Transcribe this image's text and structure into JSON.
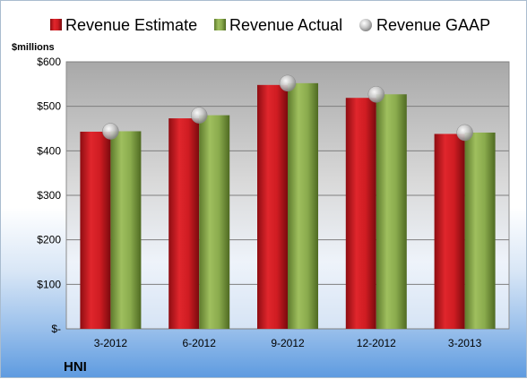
{
  "chart_data": {
    "type": "bar",
    "categories": [
      "3-2012",
      "6-2012",
      "9-2012",
      "12-2012",
      "3-2013"
    ],
    "series": [
      {
        "name": "Revenue Estimate",
        "kind": "bar",
        "color": "#c8181e",
        "values": [
          443,
          473,
          548,
          519,
          438
        ]
      },
      {
        "name": "Revenue Actual",
        "kind": "bar",
        "color": "#86a64a",
        "values": [
          444,
          480,
          552,
          527,
          441
        ]
      },
      {
        "name": "Revenue GAAP",
        "kind": "marker",
        "color": "#b8b8b8",
        "values": [
          444,
          480,
          552,
          527,
          441
        ]
      }
    ],
    "ylabel": "$millions",
    "ylim": [
      0,
      600
    ],
    "yticks": [
      0,
      100,
      200,
      300,
      400,
      500,
      600
    ],
    "ytick_labels": [
      "$-",
      "$100",
      "$200",
      "$300",
      "$400",
      "$500",
      "$600"
    ],
    "grid": true,
    "legend_position": "top",
    "company": "HNI"
  }
}
